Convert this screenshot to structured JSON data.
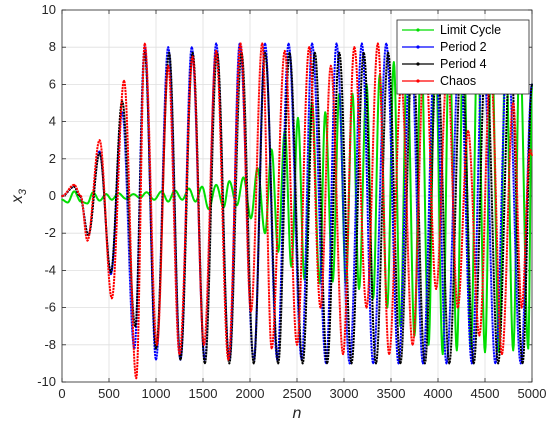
{
  "chart_data": {
    "type": "line",
    "xlabel": "n",
    "ylabel": "x",
    "ylabel_subscript": "3",
    "xlim": [
      0,
      5000
    ],
    "ylim": [
      -10,
      10
    ],
    "x_ticks": [
      0,
      500,
      1000,
      1500,
      2000,
      2500,
      3000,
      3500,
      4000,
      4500,
      5000
    ],
    "y_ticks": [
      -10,
      -8,
      -6,
      -4,
      -2,
      0,
      2,
      4,
      6,
      8,
      10
    ],
    "grid": true,
    "legend_position": "top-right",
    "series": [
      {
        "name": "Limit Cycle",
        "color": "#00dd00",
        "points": [
          [
            0,
            -0.2
          ],
          [
            60,
            -0.35
          ],
          [
            130,
            0.25
          ],
          [
            200,
            -0.3
          ],
          [
            270,
            -0.4
          ],
          [
            330,
            0.2
          ],
          [
            400,
            -0.25
          ],
          [
            470,
            0.1
          ],
          [
            530,
            -0.2
          ],
          [
            600,
            0.15
          ],
          [
            680,
            -0.15
          ],
          [
            760,
            0.1
          ],
          [
            830,
            -0.1
          ],
          [
            900,
            0.2
          ],
          [
            980,
            -0.2
          ],
          [
            1060,
            0.25
          ],
          [
            1130,
            -0.3
          ],
          [
            1200,
            0.3
          ],
          [
            1280,
            -0.2
          ],
          [
            1350,
            0.4
          ],
          [
            1420,
            -0.3
          ],
          [
            1490,
            0.5
          ],
          [
            1560,
            -0.7
          ],
          [
            1640,
            0.6
          ],
          [
            1720,
            -0.6
          ],
          [
            1780,
            0.8
          ],
          [
            1860,
            -0.5
          ],
          [
            1930,
            1.0
          ],
          [
            2010,
            -1.2
          ],
          [
            2080,
            1.5
          ],
          [
            2160,
            -2.0
          ],
          [
            2230,
            2.5
          ],
          [
            2300,
            -3.0
          ],
          [
            2370,
            3.5
          ],
          [
            2440,
            -3.8
          ],
          [
            2510,
            4.2
          ],
          [
            2580,
            -4.5
          ],
          [
            2660,
            5.0
          ],
          [
            2740,
            -4.7
          ],
          [
            2800,
            4.5
          ],
          [
            2880,
            -4.6
          ],
          [
            2950,
            5.5
          ],
          [
            3020,
            -4.7
          ],
          [
            3090,
            5.5
          ],
          [
            3160,
            -5.0
          ],
          [
            3240,
            6.0
          ],
          [
            3310,
            -5.5
          ],
          [
            3380,
            6.5
          ],
          [
            3460,
            -6.0
          ],
          [
            3530,
            7.2
          ],
          [
            3600,
            -7.0
          ],
          [
            3670,
            7.5
          ],
          [
            3750,
            -7.5
          ],
          [
            3820,
            8.2
          ],
          [
            3900,
            -8.0
          ],
          [
            3970,
            8.5
          ],
          [
            4050,
            -8.5
          ],
          [
            4120,
            8.6
          ],
          [
            4200,
            -8.3
          ],
          [
            4270,
            8.5
          ],
          [
            4350,
            -8.2
          ],
          [
            4420,
            8.5
          ],
          [
            4500,
            -8.4
          ],
          [
            4570,
            8.3
          ],
          [
            4650,
            -8.4
          ],
          [
            4720,
            8.2
          ],
          [
            4800,
            -8.3
          ],
          [
            4870,
            8.0
          ],
          [
            4960,
            -8.2
          ],
          [
            5000,
            6.0
          ]
        ]
      },
      {
        "name": "Period 2",
        "color": "#0000ff",
        "points": [
          [
            0,
            0.0
          ],
          [
            130,
            0.5
          ],
          [
            190,
            0.0
          ],
          [
            280,
            -2.1
          ],
          [
            400,
            2.4
          ],
          [
            520,
            -4.2
          ],
          [
            640,
            4.5
          ],
          [
            770,
            -8.2
          ],
          [
            880,
            8.0
          ],
          [
            1000,
            -8.8
          ],
          [
            1130,
            8.0
          ],
          [
            1260,
            -8.8
          ],
          [
            1380,
            8.0
          ],
          [
            1520,
            -8.8
          ],
          [
            1640,
            8.2
          ],
          [
            1780,
            -8.8
          ],
          [
            1890,
            8.2
          ],
          [
            2040,
            -8.8
          ],
          [
            2160,
            8.2
          ],
          [
            2290,
            -8.8
          ],
          [
            2410,
            8.2
          ],
          [
            2550,
            -8.8
          ],
          [
            2660,
            8.2
          ],
          [
            2810,
            -9.0
          ],
          [
            2920,
            8.2
          ],
          [
            3060,
            -9.0
          ],
          [
            3190,
            8.2
          ],
          [
            3310,
            -9.0
          ],
          [
            3450,
            8.2
          ],
          [
            3580,
            -9.0
          ],
          [
            3710,
            8.2
          ],
          [
            3840,
            -9.0
          ],
          [
            3970,
            8.2
          ],
          [
            4090,
            -9.0
          ],
          [
            4230,
            8.2
          ],
          [
            4360,
            -9.0
          ],
          [
            4480,
            8.2
          ],
          [
            4610,
            -9.0
          ],
          [
            4740,
            8.2
          ],
          [
            4880,
            -9.0
          ],
          [
            5000,
            6.0
          ]
        ]
      },
      {
        "name": "Period 4",
        "color": "#000000",
        "points": [
          [
            0,
            0.0
          ],
          [
            130,
            0.5
          ],
          [
            190,
            0.0
          ],
          [
            280,
            -2.1
          ],
          [
            400,
            2.3
          ],
          [
            520,
            -4.1
          ],
          [
            640,
            5.1
          ],
          [
            780,
            -7.0
          ],
          [
            880,
            7.7
          ],
          [
            1000,
            -8.2
          ],
          [
            1140,
            7.7
          ],
          [
            1260,
            -8.8
          ],
          [
            1390,
            7.7
          ],
          [
            1520,
            -9.0
          ],
          [
            1650,
            7.7
          ],
          [
            1780,
            -9.0
          ],
          [
            1910,
            7.7
          ],
          [
            2040,
            -9.0
          ],
          [
            2160,
            7.7
          ],
          [
            2300,
            -9.0
          ],
          [
            2420,
            7.7
          ],
          [
            2560,
            -9.0
          ],
          [
            2690,
            7.7
          ],
          [
            2820,
            -9.0
          ],
          [
            2950,
            7.7
          ],
          [
            3080,
            -9.0
          ],
          [
            3210,
            7.7
          ],
          [
            3340,
            -9.0
          ],
          [
            3470,
            7.7
          ],
          [
            3600,
            -9.0
          ],
          [
            3730,
            7.7
          ],
          [
            3860,
            -9.0
          ],
          [
            3990,
            7.7
          ],
          [
            4120,
            -9.0
          ],
          [
            4250,
            7.7
          ],
          [
            4380,
            -9.0
          ],
          [
            4510,
            7.7
          ],
          [
            4640,
            -9.0
          ],
          [
            4770,
            7.7
          ],
          [
            4900,
            -9.0
          ],
          [
            5000,
            6.0
          ]
        ]
      },
      {
        "name": "Chaos",
        "color": "#ff0000",
        "points": [
          [
            0,
            0.0
          ],
          [
            130,
            0.6
          ],
          [
            200,
            0.0
          ],
          [
            270,
            -2.4
          ],
          [
            400,
            3.0
          ],
          [
            530,
            -5.5
          ],
          [
            660,
            6.2
          ],
          [
            790,
            -9.8
          ],
          [
            880,
            8.2
          ],
          [
            1010,
            -8.0
          ],
          [
            1130,
            7.0
          ],
          [
            1250,
            -8.5
          ],
          [
            1390,
            7.5
          ],
          [
            1510,
            -8.0
          ],
          [
            1640,
            7.8
          ],
          [
            1770,
            -8.8
          ],
          [
            1900,
            8.2
          ],
          [
            2010,
            -6.2
          ],
          [
            2130,
            8.2
          ],
          [
            2230,
            -8.2
          ],
          [
            2370,
            7.8
          ],
          [
            2500,
            -8.0
          ],
          [
            2630,
            8.0
          ],
          [
            2750,
            -6.0
          ],
          [
            2860,
            7.0
          ],
          [
            2990,
            -8.5
          ],
          [
            3110,
            8.0
          ],
          [
            3240,
            -6.0
          ],
          [
            3360,
            8.2
          ],
          [
            3480,
            -8.5
          ],
          [
            3610,
            6.0
          ],
          [
            3730,
            -8.0
          ],
          [
            3860,
            8.2
          ],
          [
            3980,
            -5.0
          ],
          [
            4100,
            7.0
          ],
          [
            4210,
            -6.0
          ],
          [
            4320,
            3.5
          ],
          [
            4440,
            -7.5
          ],
          [
            4560,
            6.8
          ],
          [
            4680,
            -8.5
          ],
          [
            4800,
            5.0
          ],
          [
            4890,
            -6.0
          ],
          [
            4980,
            2.5
          ],
          [
            5000,
            2.2
          ]
        ]
      }
    ]
  }
}
